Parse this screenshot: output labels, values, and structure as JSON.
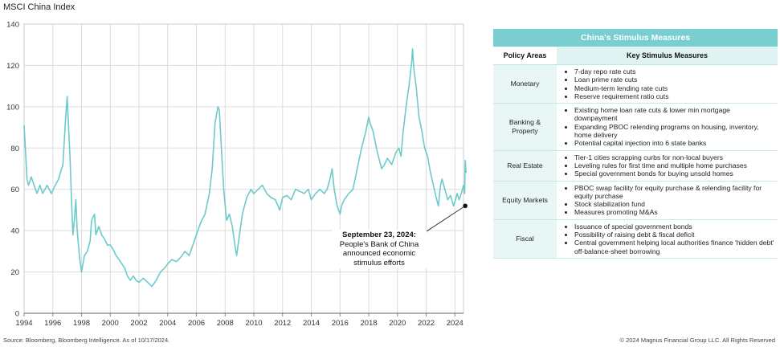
{
  "chart_data": {
    "type": "line",
    "title": "MSCI China Index",
    "ylim": [
      0,
      140
    ],
    "y_ticks": [
      0,
      20,
      40,
      60,
      80,
      100,
      120,
      140
    ],
    "x_range": [
      1994,
      2024.6
    ],
    "x_ticks": [
      "1994",
      "1996",
      "1998",
      "2000",
      "2002",
      "2004",
      "2006",
      "2008",
      "2010",
      "2012",
      "2014",
      "2016",
      "2018",
      "2020",
      "2022",
      "2024"
    ],
    "grid": true,
    "line_color": "#6ccaca",
    "series": [
      {
        "x": [
          1994.0,
          1994.1,
          1994.2,
          1994.3,
          1994.5,
          1994.7,
          1994.9,
          1995.1,
          1995.3,
          1995.6,
          1995.9,
          1996.1,
          1996.4,
          1996.7,
          1996.9,
          1997.0,
          1997.1,
          1997.2,
          1997.3,
          1997.4,
          1997.5,
          1997.6,
          1997.7,
          1997.8,
          1997.9,
          1998.0,
          1998.2,
          1998.4,
          1998.6,
          1998.7,
          1998.9,
          1999.0,
          1999.2,
          1999.4,
          1999.6,
          1999.8,
          2000.0,
          2000.2,
          2000.4,
          2000.6,
          2000.8,
          2001.0,
          2001.2,
          2001.4,
          2001.6,
          2001.8,
          2002.0,
          2002.3,
          2002.6,
          2002.9,
          2003.2,
          2003.5,
          2003.8,
          2004.0,
          2004.3,
          2004.6,
          2004.9,
          2005.2,
          2005.5,
          2005.8,
          2006.0,
          2006.3,
          2006.6,
          2006.9,
          2007.1,
          2007.3,
          2007.5,
          2007.6,
          2007.7,
          2007.8,
          2007.9,
          2008.1,
          2008.3,
          2008.5,
          2008.7,
          2008.8,
          2009.0,
          2009.2,
          2009.5,
          2009.8,
          2010.0,
          2010.3,
          2010.6,
          2010.9,
          2011.2,
          2011.5,
          2011.8,
          2012.0,
          2012.3,
          2012.6,
          2012.9,
          2013.2,
          2013.5,
          2013.8,
          2014.0,
          2014.3,
          2014.6,
          2014.9,
          2015.1,
          2015.3,
          2015.45,
          2015.6,
          2015.8,
          2016.0,
          2016.1,
          2016.3,
          2016.6,
          2016.9,
          2017.2,
          2017.5,
          2017.8,
          2018.0,
          2018.1,
          2018.3,
          2018.6,
          2018.9,
          2019.1,
          2019.3,
          2019.6,
          2019.9,
          2020.1,
          2020.25,
          2020.4,
          2020.6,
          2020.8,
          2021.0,
          2021.05,
          2021.15,
          2021.3,
          2021.5,
          2021.7,
          2021.9,
          2022.1,
          2022.3,
          2022.5,
          2022.7,
          2022.85,
          2023.0,
          2023.1,
          2023.3,
          2023.5,
          2023.7,
          2023.9,
          2024.05,
          2024.15,
          2024.3,
          2024.45,
          2024.6,
          2024.68,
          2024.72,
          2024.78
        ],
        "y": [
          91,
          78,
          65,
          62,
          66,
          62,
          58,
          62,
          58,
          62,
          58,
          61,
          65,
          72,
          95,
          105,
          90,
          75,
          55,
          38,
          45,
          55,
          40,
          32,
          25,
          20,
          28,
          30,
          35,
          45,
          48,
          38,
          42,
          38,
          36,
          33,
          33,
          31,
          28,
          26,
          24,
          22,
          18,
          16,
          18,
          16,
          15,
          17,
          15,
          13,
          16,
          20,
          22,
          24,
          26,
          25,
          27,
          30,
          28,
          34,
          38,
          44,
          48,
          58,
          70,
          92,
          100,
          98,
          85,
          72,
          60,
          45,
          48,
          42,
          32,
          28,
          38,
          48,
          56,
          60,
          58,
          60,
          62,
          58,
          56,
          55,
          50,
          56,
          57,
          55,
          60,
          59,
          58,
          60,
          55,
          58,
          60,
          58,
          60,
          65,
          70,
          60,
          52,
          48,
          52,
          55,
          58,
          60,
          70,
          80,
          88,
          95,
          92,
          88,
          78,
          70,
          72,
          75,
          72,
          78,
          80,
          76,
          88,
          100,
          110,
          122,
          128,
          118,
          110,
          95,
          88,
          80,
          76,
          68,
          62,
          56,
          52,
          62,
          65,
          60,
          55,
          57,
          52,
          55,
          58,
          55,
          58,
          62,
          58,
          74,
          68
        ]
      }
    ],
    "annotation": {
      "x": 2024.72,
      "y": 52,
      "title": "September 23, 2024:",
      "text": [
        "People's Bank of China",
        "announced economic",
        "stimulus efforts"
      ]
    }
  },
  "table": {
    "title": "China's Stimulus Measures",
    "headers": [
      "Policy Areas",
      "Key Stimulus Measures"
    ],
    "rows": [
      {
        "area": "Monetary",
        "measures": [
          "7-day repo rate cuts",
          "Loan prime rate cuts",
          "Medium-term lending rate cuts",
          "Reserve requirement ratio cuts"
        ]
      },
      {
        "area": "Banking & Property",
        "measures": [
          "Existing home loan rate cuts & lower min mortgage downpayment",
          "Expanding PBOC relending programs on housing, inventory, home delivery",
          "Potential capital injection into 6 state banks"
        ]
      },
      {
        "area": "Real Estate",
        "measures": [
          "Tier-1 cities scrapping curbs for non-local buyers",
          "Leveling rules for first time and multiple home purchases",
          "Special government bonds for buying unsold homes"
        ]
      },
      {
        "area": "Equity Markets",
        "measures": [
          "PBOC swap facility for equity purchase & relending facility for equity purchase",
          "Stock stabilization fund",
          "Measures promoting M&As"
        ]
      },
      {
        "area": "Fiscal",
        "measures": [
          "Issuance of special government bonds",
          "Possibility of raising debt & fiscal deficit",
          "Central government helping local authorities finance 'hidden debt' off-balance-sheet borrowing"
        ]
      }
    ]
  },
  "footer": {
    "source": "Source: Bloomberg, Bloomberg Intelligence. As of 10/17/2024.",
    "copyright": "© 2024 Magnus Financial Group LLC. All Rights Reserved"
  }
}
